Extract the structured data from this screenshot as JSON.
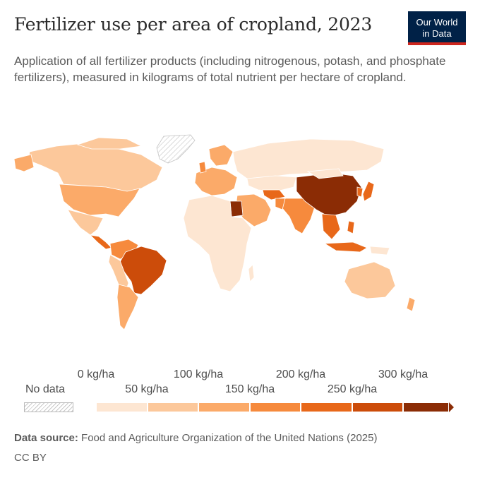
{
  "header": {
    "title": "Fertilizer use per area of cropland, 2023",
    "subtitle": "Application of all fertilizer products (including nitrogenous, potash, and phosphate fertilizers), measured in kilograms of total nutrient per hectare of cropland.",
    "logo_line1": "Our World",
    "logo_line2": "in Data"
  },
  "colors": {
    "bin_0_50": "#fde6d2",
    "bin_50_100": "#fcc89b",
    "bin_100_150": "#fbaa69",
    "bin_150_200": "#f68a3d",
    "bin_200_250": "#e8681a",
    "bin_250_300": "#cc4c0a",
    "bin_300_plus": "#8b2c05",
    "no_data": "#ffffff",
    "outline": "#ffffff"
  },
  "legend": {
    "no_data_label": "No data",
    "ticks_upper": [
      "0 kg/ha",
      "100 kg/ha",
      "200 kg/ha",
      "300 kg/ha"
    ],
    "ticks_lower": [
      "50 kg/ha",
      "150 kg/ha",
      "250 kg/ha"
    ],
    "bins": [
      "0–50",
      "50–100",
      "100–150",
      "150–200",
      "200–250",
      "250–300",
      "300+"
    ]
  },
  "footer": {
    "source_label": "Data source:",
    "source_text": "Food and Agriculture Organization of the United Nations (2025)",
    "license": "CC BY"
  },
  "map_regions": [
    {
      "name": "Canada",
      "bin": "50–100"
    },
    {
      "name": "United States",
      "bin": "100–150"
    },
    {
      "name": "Mexico",
      "bin": "50–100"
    },
    {
      "name": "Central America",
      "bin": "200–250"
    },
    {
      "name": "Colombia / Venezuela",
      "bin": "150–200"
    },
    {
      "name": "Brazil",
      "bin": "250–300"
    },
    {
      "name": "Andean South America",
      "bin": "50–100"
    },
    {
      "name": "Southern Cone",
      "bin": "100–150"
    },
    {
      "name": "Greenland",
      "bin": "No data"
    },
    {
      "name": "Western Europe",
      "bin": "100–150"
    },
    {
      "name": "Russia",
      "bin": "0–50"
    },
    {
      "name": "Africa",
      "bin": "0–50"
    },
    {
      "name": "Egypt",
      "bin": "300+"
    },
    {
      "name": "Middle East",
      "bin": "100–150"
    },
    {
      "name": "Uzbekistan",
      "bin": "200–250"
    },
    {
      "name": "India",
      "bin": "150–200"
    },
    {
      "name": "China",
      "bin": "300+"
    },
    {
      "name": "Japan / Korea",
      "bin": "200–250"
    },
    {
      "name": "Southeast Asia",
      "bin": "200–250"
    },
    {
      "name": "Australia",
      "bin": "50–100"
    }
  ]
}
